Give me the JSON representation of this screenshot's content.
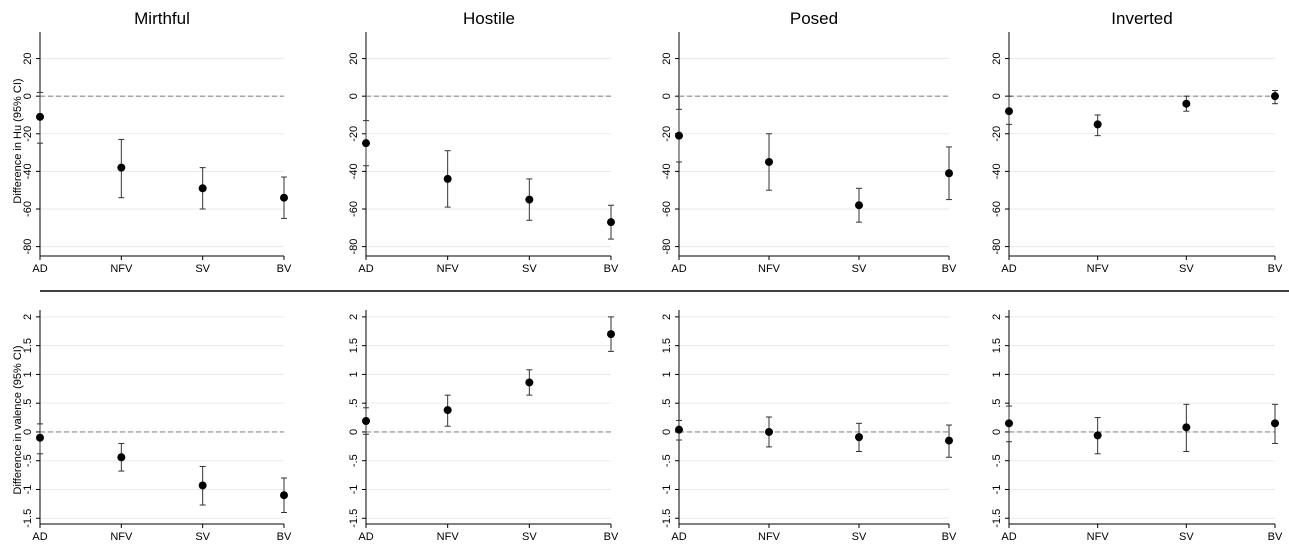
{
  "column_titles": [
    "Mirthful",
    "Hostile",
    "Posed",
    "Inverted"
  ],
  "row_ylabels": [
    "Difference in Hu (95% CI)",
    "Difference in valence (95% CI)"
  ],
  "chart_data": [
    {
      "type": "scatter",
      "title": "Mirthful",
      "ylabel": "Difference in Hu (95% CI)",
      "categories": [
        "AD",
        "NFV",
        "SV",
        "BV"
      ],
      "yticks": [
        "20",
        "0",
        "-20",
        "-40",
        "-60",
        "-80"
      ],
      "ylim": [
        -85,
        32
      ],
      "reference_line": 0,
      "points": [
        {
          "x": "AD",
          "y": -11,
          "lo": -25,
          "hi": 2
        },
        {
          "x": "NFV",
          "y": -38,
          "lo": -54,
          "hi": -23
        },
        {
          "x": "SV",
          "y": -49,
          "lo": -60,
          "hi": -38
        },
        {
          "x": "BV",
          "y": -54,
          "lo": -65,
          "hi": -43
        }
      ]
    },
    {
      "type": "scatter",
      "title": "Hostile",
      "categories": [
        "AD",
        "NFV",
        "SV",
        "BV"
      ],
      "yticks": [
        "20",
        "0",
        "-20",
        "-40",
        "-60",
        "-80"
      ],
      "ylim": [
        -85,
        32
      ],
      "reference_line": 0,
      "points": [
        {
          "x": "AD",
          "y": -25,
          "lo": -37,
          "hi": -13
        },
        {
          "x": "NFV",
          "y": -44,
          "lo": -59,
          "hi": -29
        },
        {
          "x": "SV",
          "y": -55,
          "lo": -66,
          "hi": -44
        },
        {
          "x": "BV",
          "y": -67,
          "lo": -76,
          "hi": -58
        }
      ]
    },
    {
      "type": "scatter",
      "title": "Posed",
      "categories": [
        "AD",
        "NFV",
        "SV",
        "BV"
      ],
      "yticks": [
        "20",
        "0",
        "-20",
        "-40",
        "-60",
        "-80"
      ],
      "ylim": [
        -85,
        32
      ],
      "reference_line": 0,
      "points": [
        {
          "x": "AD",
          "y": -21,
          "lo": -35,
          "hi": -7
        },
        {
          "x": "NFV",
          "y": -35,
          "lo": -50,
          "hi": -20
        },
        {
          "x": "SV",
          "y": -58,
          "lo": -67,
          "hi": -49
        },
        {
          "x": "BV",
          "y": -41,
          "lo": -55,
          "hi": -27
        }
      ]
    },
    {
      "type": "scatter",
      "title": "Inverted",
      "categories": [
        "AD",
        "NFV",
        "SV",
        "BV"
      ],
      "yticks": [
        "20",
        "0",
        "-20",
        "-40",
        "-60",
        "-80"
      ],
      "ylim": [
        -85,
        32
      ],
      "reference_line": 0,
      "points": [
        {
          "x": "AD",
          "y": -8,
          "lo": -15,
          "hi": 0
        },
        {
          "x": "NFV",
          "y": -15,
          "lo": -21,
          "hi": -10
        },
        {
          "x": "SV",
          "y": -4,
          "lo": -8,
          "hi": 0
        },
        {
          "x": "BV",
          "y": 0,
          "lo": -4,
          "hi": 3
        }
      ]
    },
    {
      "type": "scatter",
      "ylabel": "Difference in valence (95% CI)",
      "categories": [
        "AD",
        "NFV",
        "SV",
        "BV"
      ],
      "yticks": [
        "2",
        "1.5",
        "1",
        ".5",
        "0",
        "-.5",
        "-1",
        "-1.5"
      ],
      "ylim": [
        -1.6,
        2.05
      ],
      "reference_line": 0,
      "points": [
        {
          "x": "AD",
          "y": -0.1,
          "lo": -0.38,
          "hi": 0.14
        },
        {
          "x": "NFV",
          "y": -0.44,
          "lo": -0.68,
          "hi": -0.2
        },
        {
          "x": "SV",
          "y": -0.93,
          "lo": -1.27,
          "hi": -0.6
        },
        {
          "x": "BV",
          "y": -1.1,
          "lo": -1.4,
          "hi": -0.8
        }
      ]
    },
    {
      "type": "scatter",
      "categories": [
        "AD",
        "NFV",
        "SV",
        "BV"
      ],
      "yticks": [
        "2",
        "1.5",
        "1",
        ".5",
        "0",
        "-.5",
        "-1",
        "-1.5"
      ],
      "ylim": [
        -1.6,
        2.05
      ],
      "reference_line": 0,
      "points": [
        {
          "x": "AD",
          "y": 0.19,
          "lo": -0.04,
          "hi": 0.42
        },
        {
          "x": "NFV",
          "y": 0.38,
          "lo": 0.1,
          "hi": 0.64
        },
        {
          "x": "SV",
          "y": 0.86,
          "lo": 0.64,
          "hi": 1.08
        },
        {
          "x": "BV",
          "y": 1.7,
          "lo": 1.4,
          "hi": 2.0
        }
      ]
    },
    {
      "type": "scatter",
      "categories": [
        "AD",
        "NFV",
        "SV",
        "BV"
      ],
      "yticks": [
        "2",
        "1.5",
        "1",
        ".5",
        "0",
        "-.5",
        "-1",
        "-1.5"
      ],
      "ylim": [
        -1.6,
        2.05
      ],
      "reference_line": 0,
      "points": [
        {
          "x": "AD",
          "y": 0.04,
          "lo": -0.14,
          "hi": 0.2
        },
        {
          "x": "NFV",
          "y": 0.0,
          "lo": -0.26,
          "hi": 0.26
        },
        {
          "x": "SV",
          "y": -0.09,
          "lo": -0.34,
          "hi": 0.15
        },
        {
          "x": "BV",
          "y": -0.15,
          "lo": -0.44,
          "hi": 0.12
        }
      ]
    },
    {
      "type": "scatter",
      "categories": [
        "AD",
        "NFV",
        "SV",
        "BV"
      ],
      "yticks": [
        "2",
        "1.5",
        "1",
        ".5",
        "0",
        "-.5",
        "-1",
        "-1.5"
      ],
      "ylim": [
        -1.6,
        2.05
      ],
      "reference_line": 0,
      "points": [
        {
          "x": "AD",
          "y": 0.15,
          "lo": -0.17,
          "hi": 0.45
        },
        {
          "x": "NFV",
          "y": -0.06,
          "lo": -0.38,
          "hi": 0.25
        },
        {
          "x": "SV",
          "y": 0.08,
          "lo": -0.34,
          "hi": 0.48
        },
        {
          "x": "BV",
          "y": 0.15,
          "lo": -0.2,
          "hi": 0.48
        }
      ]
    }
  ],
  "colors": {
    "point": "#000000",
    "errorbar": "#333333",
    "grid": "#eaeaea",
    "refline": "#8a8a8a",
    "divider": "#000000"
  }
}
